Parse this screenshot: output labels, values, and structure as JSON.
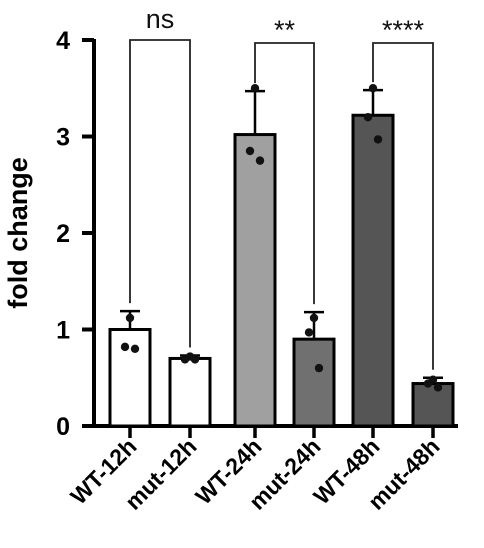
{
  "chart_data": {
    "type": "bar",
    "ylabel": "fold change",
    "xlabel": "",
    "ylim": [
      0,
      4
    ],
    "yticks": [
      0,
      1,
      2,
      3,
      4
    ],
    "categories": [
      "WT-12h",
      "mut-12h",
      "WT-24h",
      "mut-24h",
      "WT-48h",
      "mut-48h"
    ],
    "values": [
      1.0,
      0.7,
      3.02,
      0.9,
      3.22,
      0.44
    ],
    "errors": [
      0.19,
      0.03,
      0.45,
      0.28,
      0.26,
      0.06
    ],
    "points": [
      [
        1.12,
        0.82,
        0.8
      ],
      [
        0.72,
        0.69,
        0.69
      ],
      [
        3.5,
        2.85,
        2.75
      ],
      [
        1.12,
        0.97,
        0.6
      ],
      [
        3.5,
        3.2,
        2.97
      ],
      [
        0.48,
        0.44,
        0.4
      ]
    ],
    "bar_colors": [
      "#ffffff",
      "#ffffff",
      "#a0a0a0",
      "#707070",
      "#555555",
      "#555555"
    ],
    "comparisons": [
      {
        "from": "WT-12h",
        "to": "mut-12h",
        "label": "ns"
      },
      {
        "from": "WT-24h",
        "to": "mut-24h",
        "label": "**"
      },
      {
        "from": "WT-48h",
        "to": "mut-48h",
        "label": "****"
      }
    ],
    "grid": false
  }
}
